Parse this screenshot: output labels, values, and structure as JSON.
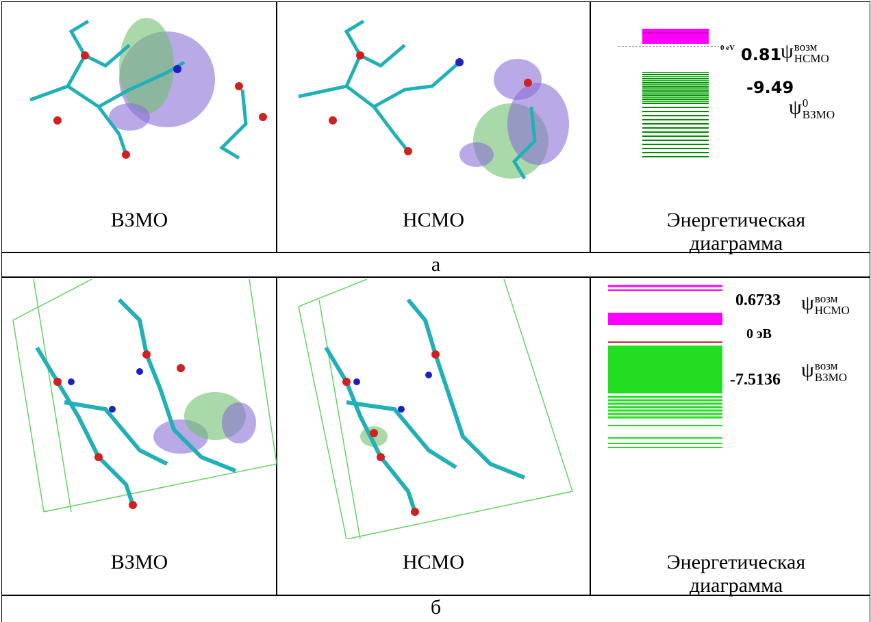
{
  "rows": [
    {
      "captions": [
        "ВЗМО",
        "НСМО",
        "Энергетическая диаграмма"
      ],
      "label": "а",
      "diagram": {
        "zero": "0 eV",
        "levels": [
          {
            "value": "0.81",
            "symbol": "ψ",
            "sup": "возм",
            "sub": "НСМО"
          },
          {
            "value": "-9.49",
            "symbol": "ψ",
            "sup": "0",
            "sub": "ВЗМО"
          }
        ]
      }
    },
    {
      "captions": [
        "ВЗМО",
        "НСМО",
        "Энергетическая диаграмма"
      ],
      "label": "б",
      "diagram": {
        "zero": "0 эВ",
        "levels": [
          {
            "value": "0.6733",
            "symbol": "ψ",
            "sup": "возм",
            "sub": "НСМО"
          },
          {
            "value": "-7.5136",
            "symbol": "ψ",
            "sup": "возм",
            "sub": "ВЗМО"
          }
        ]
      }
    }
  ]
}
